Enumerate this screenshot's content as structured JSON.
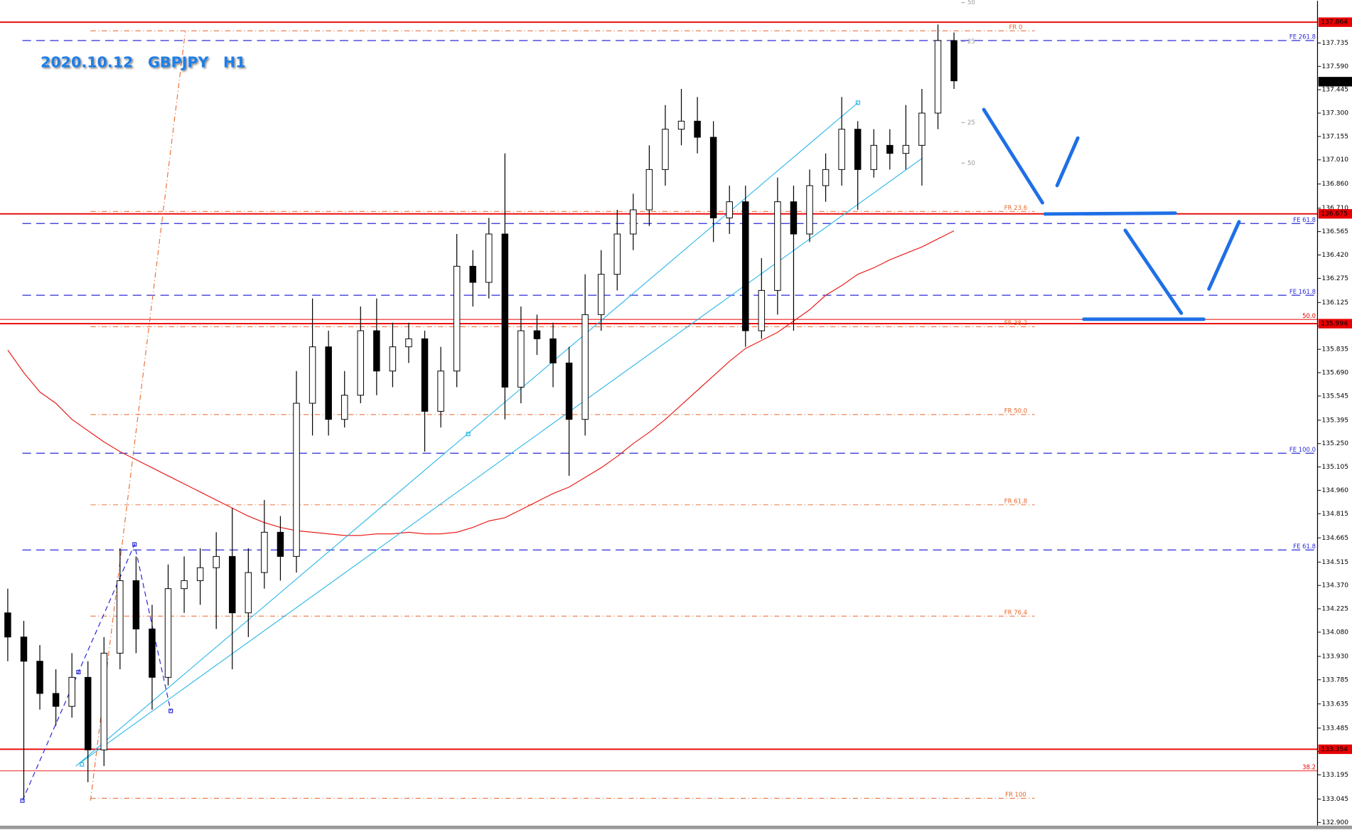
{
  "chart_data": {
    "type": "candlestick",
    "title": "2020.10.12　GBPJPY　H1",
    "ylim": [
      132.88,
      137.996
    ],
    "yticks": [
      137.735,
      {
        "value": 137.59,
        "label": "137.590"
      },
      137.445,
      {
        "value": 137.3,
        "label": "137.300"
      },
      137.155,
      {
        "value": 137.01,
        "label": "137.010"
      },
      {
        "value": 136.86,
        "label": "136.860"
      },
      {
        "value": 136.71,
        "label": "136.710"
      },
      136.565,
      {
        "value": 136.42,
        "label": "136.420"
      },
      136.275,
      136.125,
      {
        "value": 135.98,
        "label": "135.980"
      },
      135.835,
      {
        "value": 135.69,
        "label": "135.690"
      },
      135.545,
      135.395,
      {
        "value": 135.25,
        "label": "135.250"
      },
      135.105,
      {
        "value": 134.96,
        "label": "134.960"
      },
      134.815,
      134.665,
      134.515,
      {
        "value": 134.37,
        "label": "134.370"
      },
      134.225,
      {
        "value": 134.08,
        "label": "134.080"
      },
      {
        "value": 133.93,
        "label": "133.930"
      },
      133.785,
      133.635,
      133.485,
      {
        "value": 133.34,
        "label": "133.340"
      },
      133.195,
      133.045,
      {
        "value": 132.9,
        "label": "132.900"
      }
    ],
    "open": [
      134.2,
      134.05,
      133.9,
      133.7,
      133.62,
      133.8,
      133.35,
      133.95,
      134.4,
      134.1,
      133.8,
      134.35,
      134.4,
      134.48,
      134.55,
      134.2,
      134.45,
      134.7,
      134.55,
      135.5,
      135.85,
      135.4,
      135.55,
      135.95,
      135.7,
      135.85,
      135.9,
      135.45,
      135.7,
      136.35,
      136.25,
      136.55,
      135.6,
      135.95,
      135.9,
      135.75,
      135.4,
      136.05,
      136.3,
      136.55,
      136.7,
      136.95,
      137.2,
      137.25,
      137.15,
      136.65,
      136.75,
      135.95,
      136.2,
      136.75,
      136.55,
      136.85,
      136.95,
      137.2,
      136.95,
      137.1,
      137.05,
      137.1,
      137.3,
      137.75
    ],
    "high": [
      134.35,
      134.15,
      134.0,
      133.85,
      133.95,
      133.9,
      134.05,
      134.6,
      134.55,
      134.25,
      134.5,
      134.55,
      134.6,
      134.7,
      134.85,
      134.6,
      134.9,
      134.8,
      135.7,
      136.15,
      135.95,
      135.7,
      136.1,
      136.15,
      136.0,
      136.0,
      135.95,
      135.85,
      136.55,
      136.45,
      136.65,
      137.05,
      136.1,
      136.05,
      136.0,
      135.85,
      136.3,
      136.45,
      136.7,
      136.8,
      137.1,
      137.35,
      137.45,
      137.4,
      137.25,
      136.85,
      136.85,
      136.4,
      136.9,
      136.85,
      136.95,
      137.05,
      137.4,
      137.25,
      137.2,
      137.2,
      137.35,
      137.45,
      137.85,
      137.8
    ],
    "low": [
      133.9,
      133.05,
      133.6,
      133.5,
      133.55,
      133.15,
      133.25,
      133.85,
      133.95,
      133.6,
      133.75,
      134.2,
      134.25,
      134.1,
      133.85,
      134.05,
      134.35,
      134.4,
      134.45,
      135.3,
      135.3,
      135.35,
      135.5,
      135.55,
      135.6,
      135.75,
      135.2,
      135.35,
      135.6,
      136.1,
      136.15,
      135.4,
      135.5,
      135.8,
      135.6,
      135.05,
      135.3,
      135.95,
      136.2,
      136.45,
      136.6,
      136.85,
      137.1,
      137.05,
      136.5,
      136.55,
      135.85,
      135.9,
      136.05,
      135.95,
      136.5,
      136.75,
      136.85,
      136.7,
      136.9,
      136.95,
      136.95,
      136.85,
      137.2,
      137.45
    ],
    "close": [
      134.05,
      133.9,
      133.7,
      133.62,
      133.8,
      133.35,
      133.95,
      134.4,
      134.1,
      133.8,
      134.35,
      134.4,
      134.48,
      134.55,
      134.2,
      134.45,
      134.7,
      134.55,
      135.5,
      135.85,
      135.4,
      135.55,
      135.95,
      135.7,
      135.85,
      135.9,
      135.45,
      135.7,
      136.35,
      136.25,
      136.55,
      135.6,
      135.95,
      135.9,
      135.75,
      135.4,
      136.05,
      136.3,
      136.55,
      136.7,
      136.95,
      137.2,
      137.25,
      137.15,
      136.65,
      136.75,
      135.95,
      136.2,
      136.75,
      136.55,
      136.85,
      136.95,
      137.2,
      136.95,
      137.1,
      137.05,
      137.1,
      137.3,
      137.75,
      137.5
    ],
    "bull_color": "#ffffff",
    "bear_color": "#000000",
    "wick_color": "#000000",
    "moving_average": {
      "color": "#e8201c",
      "values": [
        135.83,
        135.69,
        135.57,
        135.5,
        135.4,
        135.33,
        135.26,
        135.2,
        135.15,
        135.1,
        135.05,
        135.0,
        134.95,
        134.9,
        134.85,
        134.8,
        134.76,
        134.73,
        134.71,
        134.7,
        134.69,
        134.68,
        134.68,
        134.69,
        134.69,
        134.7,
        134.69,
        134.69,
        134.7,
        134.73,
        134.77,
        134.79,
        134.84,
        134.89,
        134.94,
        134.98,
        135.04,
        135.1,
        135.17,
        135.25,
        135.32,
        135.4,
        135.49,
        135.58,
        135.67,
        135.76,
        135.84,
        135.89,
        135.94,
        136.01,
        136.08,
        136.17,
        136.23,
        136.3,
        136.34,
        136.39,
        136.43,
        136.47,
        136.52,
        136.57
      ]
    },
    "last_price": 137.495,
    "level_colors": {
      "red": "#e80000",
      "red-thin": "#e80000",
      "fe": "#2a2ad8",
      "fr": "#e8662a"
    },
    "levels": [
      {
        "price": 137.864,
        "kind": "red",
        "boxed": true
      },
      {
        "price": 137.81,
        "kind": "fr",
        "label": "FR  0"
      },
      {
        "price": 137.75,
        "kind": "fe",
        "label": "FE  261.8"
      },
      {
        "price": 136.69,
        "kind": "fr",
        "label": "FR 23.6"
      },
      {
        "price": 136.675,
        "kind": "red",
        "boxed": true
      },
      {
        "price": 136.615,
        "kind": "fe",
        "label": "FE 61.8"
      },
      {
        "price": 136.17,
        "kind": "fe",
        "label": "FE 161.8"
      },
      {
        "price": 136.02,
        "kind": "red-thin",
        "label": "50.0"
      },
      {
        "price": 135.994,
        "kind": "red",
        "boxed": true
      },
      {
        "price": 135.975,
        "kind": "fr",
        "label": "FR 38.2"
      },
      {
        "price": 135.43,
        "kind": "fr",
        "label": "FR 50.0"
      },
      {
        "price": 135.19,
        "kind": "fe",
        "label": "FE 100.0"
      },
      {
        "price": 134.87,
        "kind": "fr",
        "label": "FR 61.8"
      },
      {
        "price": 134.59,
        "kind": "fe",
        "label": "FE 61.8"
      },
      {
        "price": 134.18,
        "kind": "fr",
        "label": "FR  76.4"
      },
      {
        "price": 133.354,
        "kind": "red",
        "boxed": true
      },
      {
        "price": 133.22,
        "kind": "red-thin",
        "label": "38.2"
      },
      {
        "price": 133.05,
        "kind": "fr",
        "label": "FR  100"
      }
    ],
    "scale_labels": [
      "50",
      "25",
      "25",
      "50"
    ]
  }
}
